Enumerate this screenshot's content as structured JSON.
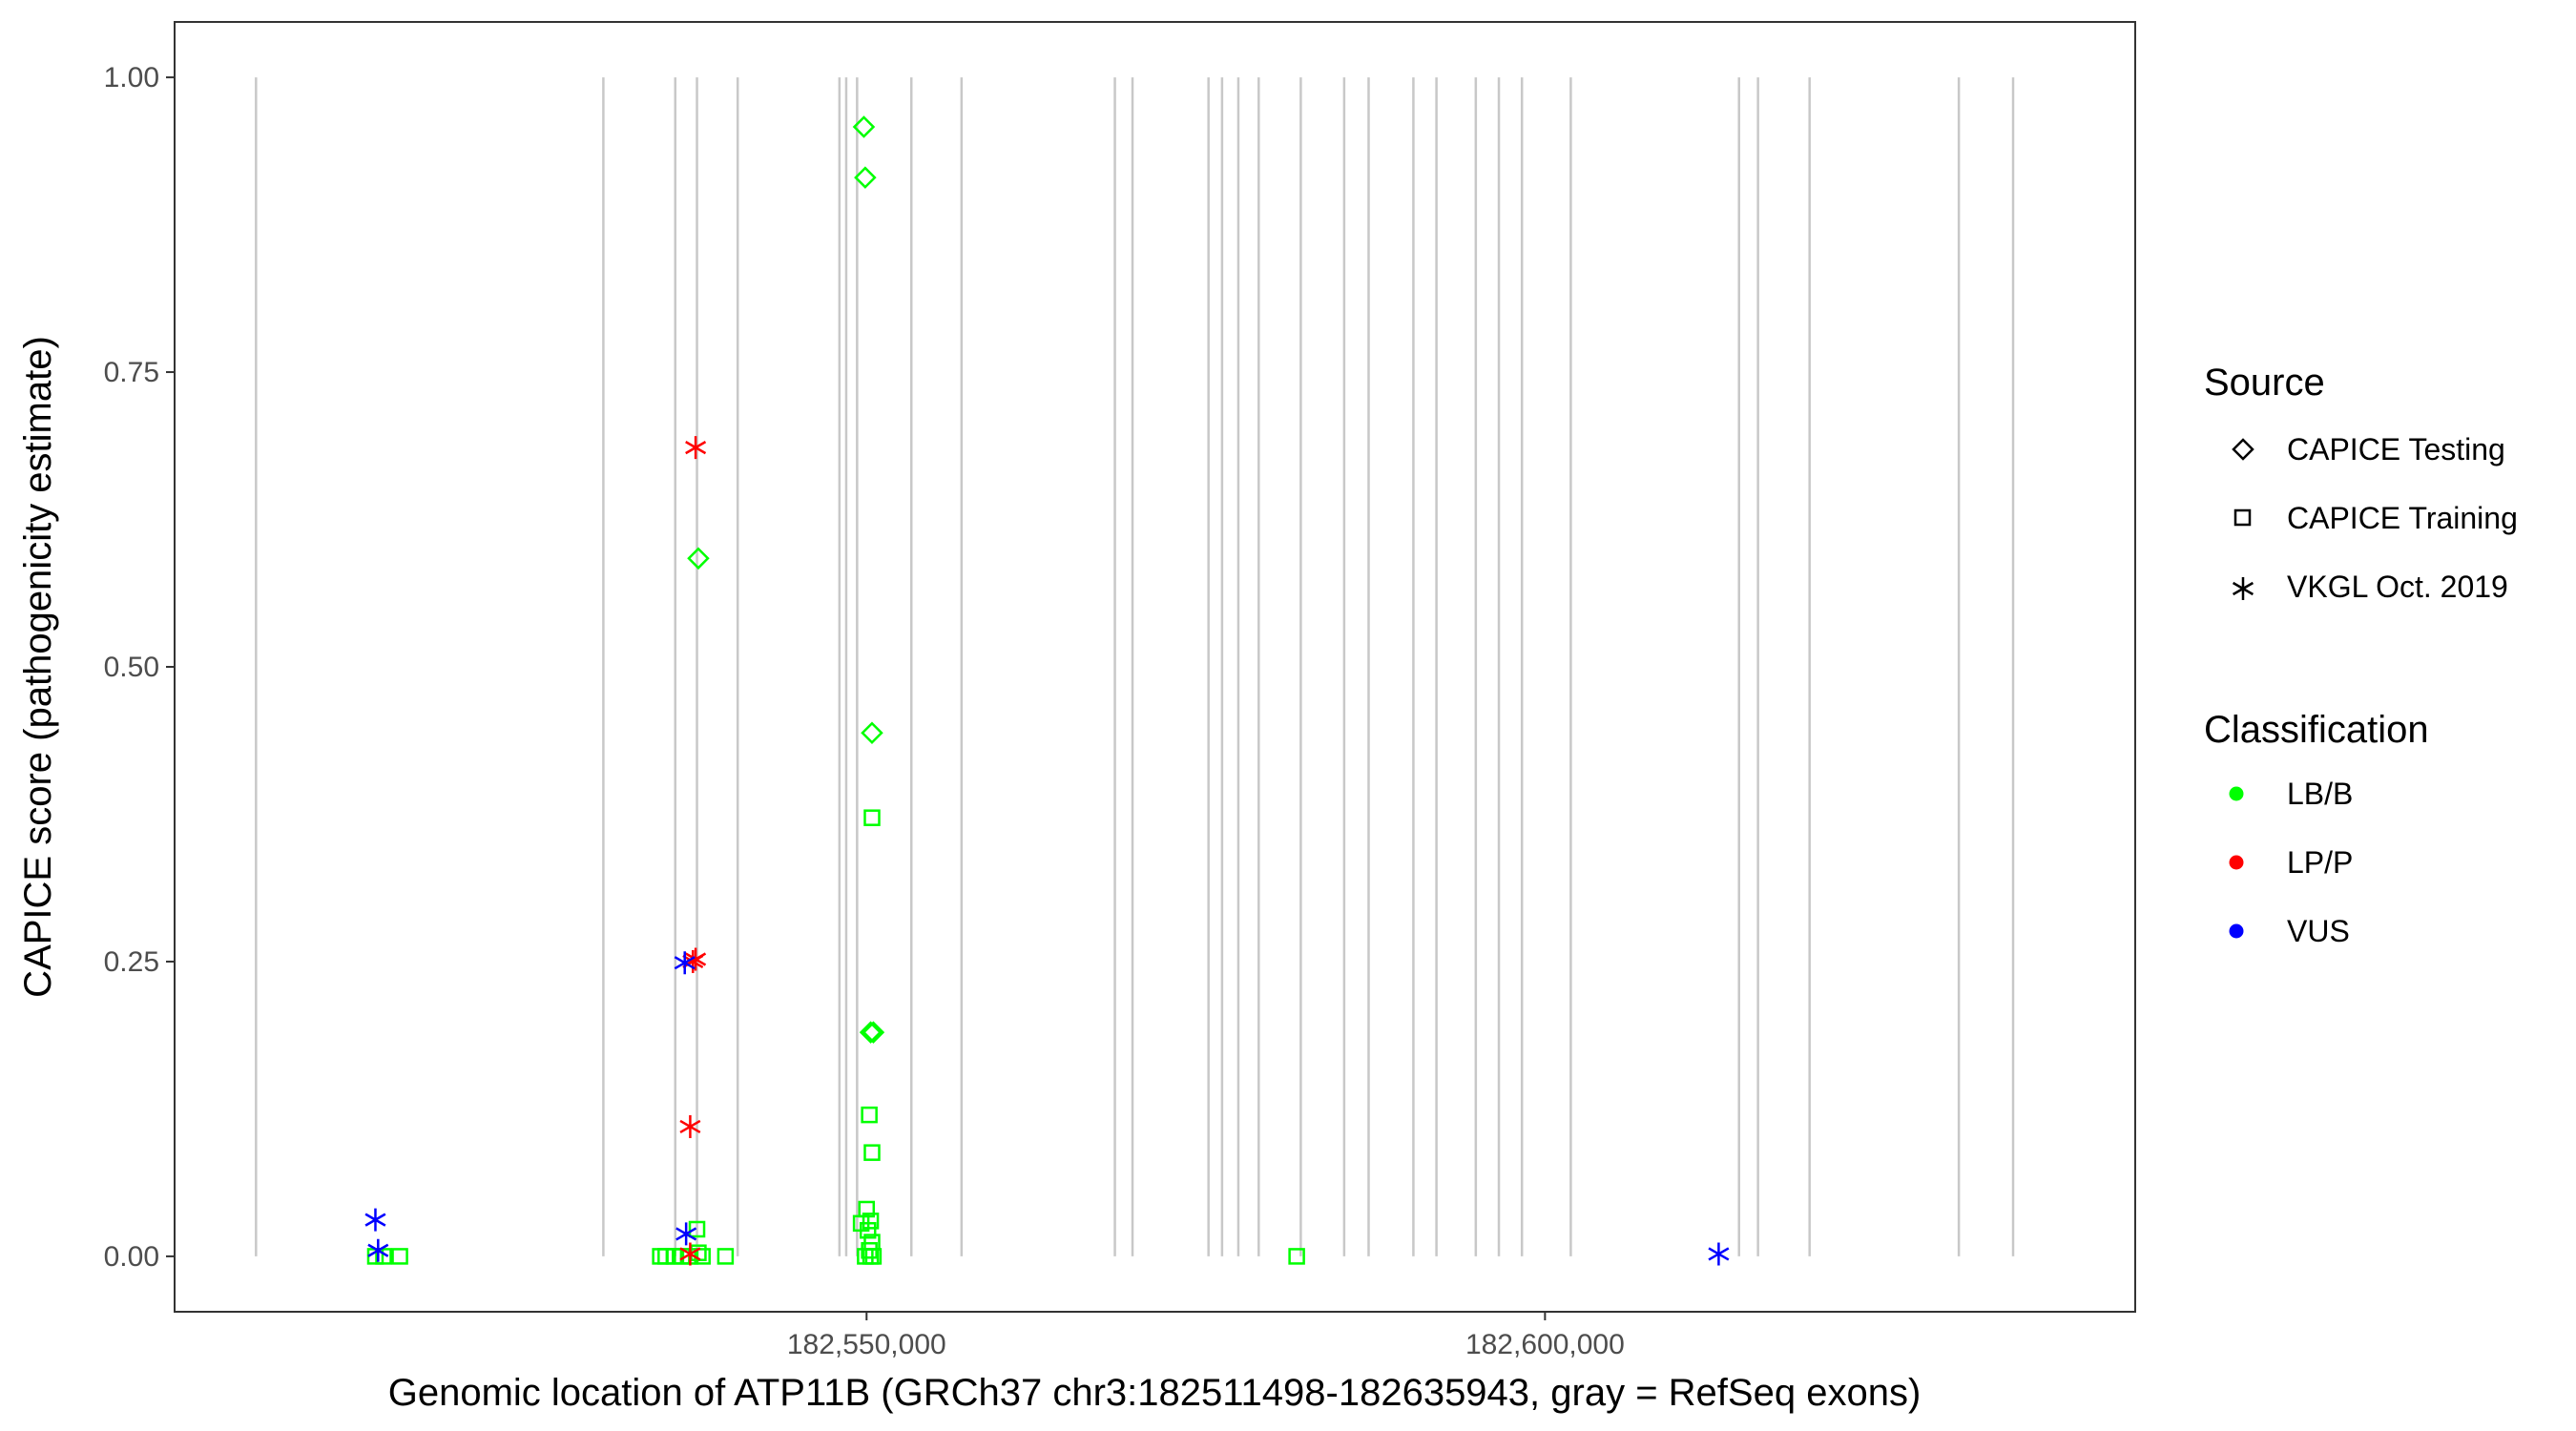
{
  "chart_data": {
    "type": "scatter",
    "xlabel": "Genomic location of ATP11B (GRCh37 chr3:182511498-182635943, gray = RefSeq exons)",
    "ylabel": "CAPICE score (pathogenicity estimate)",
    "xlim": [
      182499000,
      182643500
    ],
    "ylim": [
      -0.047,
      1.047
    ],
    "x_ticks": [
      182550000,
      182600000
    ],
    "x_tick_labels": [
      "182,550,000",
      "182,600,000"
    ],
    "y_ticks": [
      0,
      0.25,
      0.5,
      0.75,
      1.0
    ],
    "y_tick_labels": [
      "0.00",
      "0.25",
      "0.50",
      "0.75",
      "1.00"
    ],
    "grid": false,
    "exon_positions": [
      182505000,
      182530600,
      182535900,
      182537500,
      182540500,
      182548000,
      182548500,
      182549300,
      182553300,
      182557000,
      182568300,
      182569600,
      182575200,
      182576200,
      182577400,
      182578900,
      182582000,
      182585200,
      182587000,
      182590300,
      182592000,
      182594900,
      182596600,
      182598300,
      182601900,
      182614300,
      182615700,
      182619500,
      182630500,
      182634500
    ],
    "legends": [
      {
        "title": "Source",
        "placement": "right",
        "entries": [
          {
            "label": "CAPICE Testing",
            "shape": "diamond"
          },
          {
            "label": "CAPICE Training",
            "shape": "square"
          },
          {
            "label": "VKGL Oct. 2019",
            "shape": "asterisk"
          }
        ]
      },
      {
        "title": "Classification",
        "placement": "right",
        "entries": [
          {
            "label": "LB/B",
            "color": "#00ff00"
          },
          {
            "label": "LP/P",
            "color": "#ff0000"
          },
          {
            "label": "VUS",
            "color": "#0000ff"
          }
        ]
      }
    ],
    "series": [
      {
        "source": "CAPICE Testing",
        "classification": "LB/B",
        "shape": "diamond",
        "color": "#00ff00",
        "points": [
          [
            182549800,
            0.958
          ],
          [
            182549900,
            0.915
          ],
          [
            182537600,
            0.592
          ],
          [
            182550400,
            0.444
          ],
          [
            182550300,
            0.19
          ],
          [
            182550500,
            0.19
          ]
        ]
      },
      {
        "source": "CAPICE Training",
        "classification": "LB/B",
        "shape": "square",
        "color": "#00ff00",
        "points": [
          [
            182550400,
            0.372
          ],
          [
            182550200,
            0.12
          ],
          [
            182550400,
            0.088
          ],
          [
            182550000,
            0.04
          ],
          [
            182549600,
            0.028
          ],
          [
            182550300,
            0.03
          ],
          [
            182550100,
            0.022
          ],
          [
            182550400,
            0.012
          ],
          [
            182550200,
            0.005
          ],
          [
            182549900,
            0.0
          ],
          [
            182550300,
            0.0
          ],
          [
            182550500,
            0.0
          ],
          [
            182537500,
            0.023
          ],
          [
            182537600,
            0.003
          ],
          [
            182534800,
            0.0
          ],
          [
            182535200,
            0.0
          ],
          [
            182535800,
            0.0
          ],
          [
            182536400,
            0.0
          ],
          [
            182537000,
            0.0
          ],
          [
            182537900,
            0.0
          ],
          [
            182539600,
            0.0
          ],
          [
            182513800,
            0.0
          ],
          [
            182514400,
            0.0
          ],
          [
            182515600,
            0.0
          ],
          [
            182581700,
            0.0
          ]
        ]
      },
      {
        "source": "VKGL Oct. 2019",
        "classification": "LP/P",
        "shape": "asterisk",
        "color": "#ff0000",
        "points": [
          [
            182537400,
            0.686
          ],
          [
            182537400,
            0.252
          ],
          [
            182537200,
            0.25
          ],
          [
            182537000,
            0.11
          ],
          [
            182537000,
            0.002
          ]
        ]
      },
      {
        "source": "VKGL Oct. 2019",
        "classification": "VUS",
        "shape": "asterisk",
        "color": "#0000ff",
        "points": [
          [
            182513800,
            0.031
          ],
          [
            182514000,
            0.005
          ],
          [
            182536600,
            0.249
          ],
          [
            182536700,
            0.019
          ],
          [
            182612800,
            0.002
          ]
        ]
      }
    ]
  }
}
